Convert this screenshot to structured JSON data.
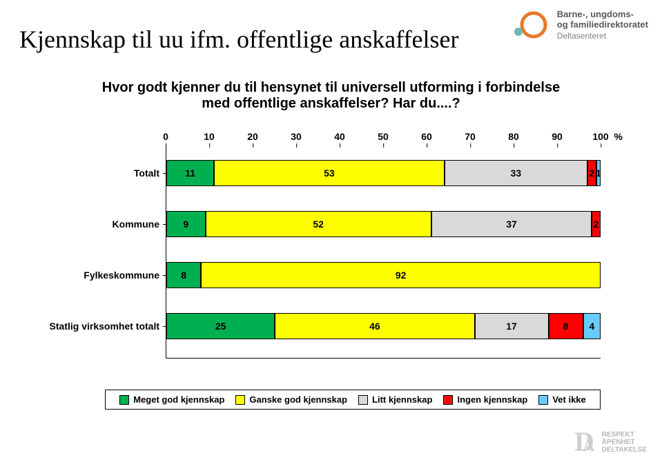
{
  "logo": {
    "line1": "Barne-, ungdoms-",
    "line2": "og familiedirektoratet",
    "sub": "Deltasenteret",
    "main_color": "#595959",
    "accent_orange": "#e7792b",
    "accent_teal": "#6cb9b4",
    "fontsize_main": 13,
    "fontsize_sub": 12
  },
  "footer": {
    "line1": "RESPEKT",
    "line2": "ÅPENHET",
    "line3": "DELTAKELSE",
    "color": "#b7b7b7",
    "glyph_color": "#cfcfcf"
  },
  "title": "Kjennskap til uu ifm. offentlige anskaffelser",
  "subtitle": "Hvor godt kjenner du til hensynet til universell utforming i forbindelse med offentlige anskaffelser? Har du....?",
  "chart": {
    "type": "stacked-bar-horizontal",
    "x_axis": {
      "ticks": [
        0,
        10,
        20,
        30,
        40,
        50,
        60,
        70,
        80,
        90,
        100
      ],
      "suffix": "%",
      "fontsize": 14
    },
    "series": [
      {
        "label": "Meget god kjennskap",
        "color": "#00b050"
      },
      {
        "label": "Ganske god kjennskap",
        "color": "#ffff00"
      },
      {
        "label": "Litt kjennskap",
        "color": "#d9d9d9"
      },
      {
        "label": "Ingen kjennskap",
        "color": "#ff0000"
      },
      {
        "label": "Vet ikke",
        "color": "#66ccff"
      }
    ],
    "rows": [
      {
        "label": "Totalt",
        "values": [
          11,
          53,
          33,
          2,
          1
        ]
      },
      {
        "label": "Kommune",
        "values": [
          9,
          52,
          37,
          2,
          0
        ]
      },
      {
        "label": "Fylkeskommune",
        "values": [
          8,
          92,
          0,
          0,
          0
        ]
      },
      {
        "label": "Statlig virksomhet totalt",
        "values": [
          25,
          46,
          17,
          8,
          4
        ]
      }
    ],
    "bar_border": "#000000",
    "background_color": "#ffffff",
    "value_fontsize": 14,
    "label_fontsize": 14
  }
}
